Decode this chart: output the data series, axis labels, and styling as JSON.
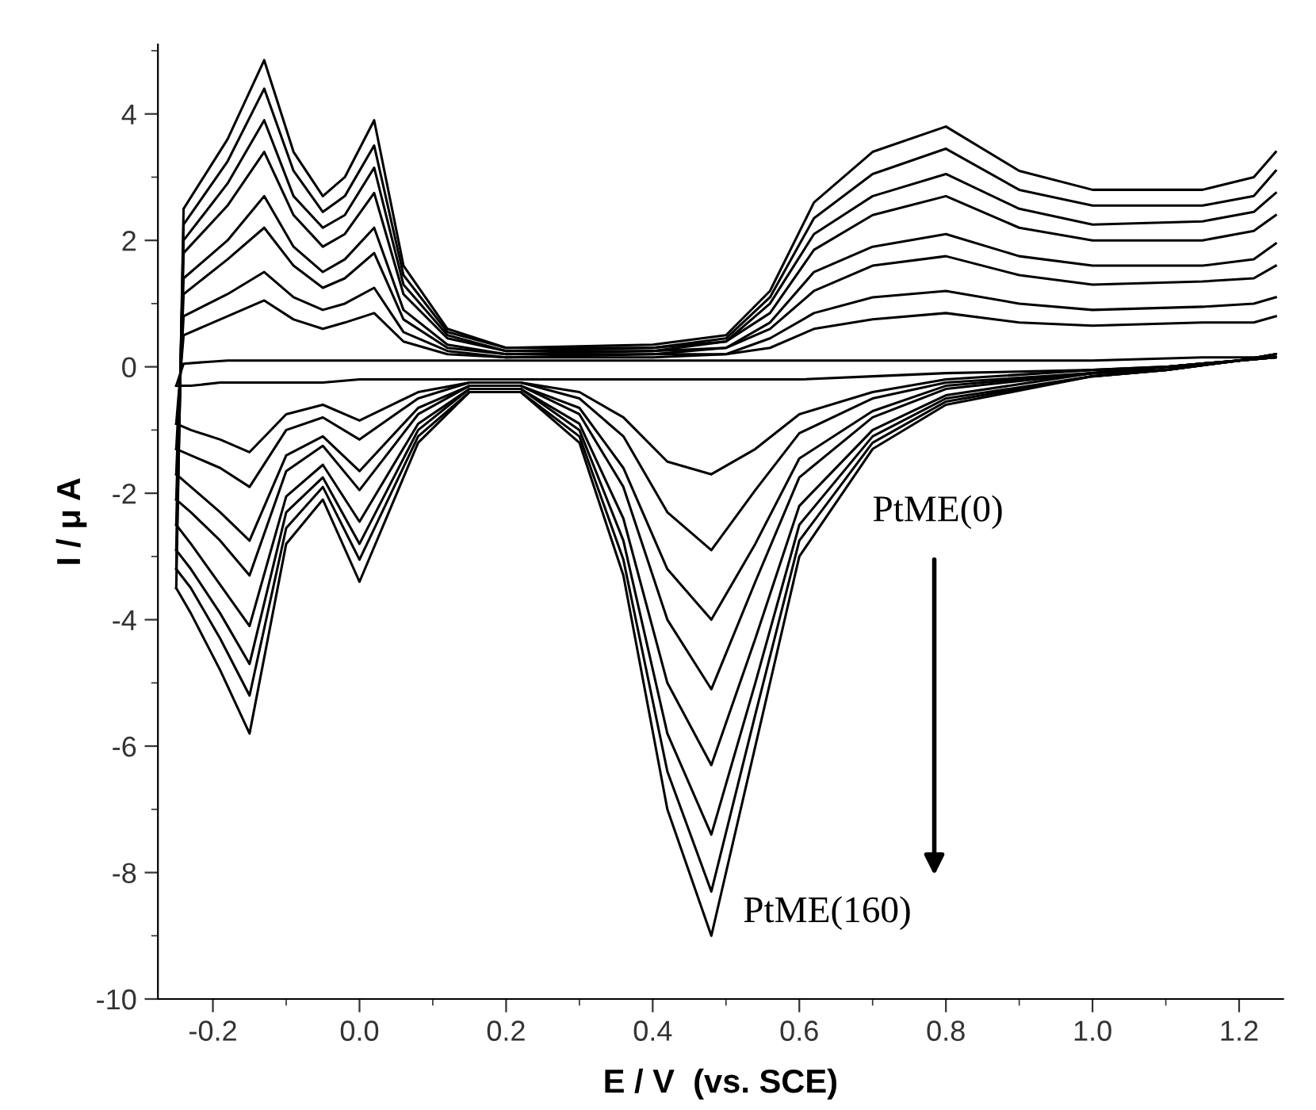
{
  "chart_data": {
    "type": "line",
    "xlabel": "E / V  (vs. SCE)",
    "ylabel": "I / μ A",
    "annotations": [
      "PtME(0)",
      "PtME(160)"
    ],
    "series": [
      {
        "color": "#000000",
        "x": [
          -0.25,
          -0.24,
          -0.18,
          -0.13,
          -0.09,
          -0.05,
          -0.02,
          0.02,
          0.06,
          0.12,
          0.2,
          0.4,
          0.5,
          0.56,
          0.62,
          0.7,
          0.8,
          0.9,
          1.0,
          1.15,
          1.22,
          1.25
        ],
        "values": [
          -0.3,
          0.05,
          0.1,
          0.1,
          0.1,
          0.1,
          0.1,
          0.1,
          0.1,
          0.1,
          0.1,
          0.1,
          0.1,
          0.1,
          0.1,
          0.1,
          0.1,
          0.1,
          0.1,
          0.15,
          0.15,
          0.15
        ]
      },
      {
        "color": "#000000",
        "x": [
          -0.25,
          -0.23,
          -0.19,
          -0.15,
          -0.1,
          -0.05,
          0.0,
          0.08,
          0.15,
          0.22,
          0.3,
          0.36,
          0.42,
          0.48,
          0.54,
          0.6,
          0.7,
          0.8,
          1.0,
          1.1,
          1.2,
          1.25
        ],
        "values": [
          -0.3,
          -0.3,
          -0.25,
          -0.25,
          -0.25,
          -0.25,
          -0.2,
          -0.2,
          -0.2,
          -0.2,
          -0.2,
          -0.2,
          -0.2,
          -0.2,
          -0.2,
          -0.2,
          -0.15,
          -0.1,
          -0.05,
          0.0,
          0.1,
          0.15
        ]
      },
      {
        "color": "#000000",
        "x": [
          -0.25,
          -0.24,
          -0.18,
          -0.13,
          -0.09,
          -0.05,
          -0.02,
          0.02,
          0.06,
          0.12,
          0.2,
          0.4,
          0.5,
          0.56,
          0.62,
          0.7,
          0.8,
          0.9,
          1.0,
          1.15,
          1.22,
          1.25
        ],
        "values": [
          -0.9,
          0.5,
          0.8,
          1.05,
          0.75,
          0.6,
          0.7,
          0.85,
          0.4,
          0.2,
          0.15,
          0.15,
          0.2,
          0.3,
          0.6,
          0.75,
          0.85,
          0.7,
          0.65,
          0.7,
          0.7,
          0.8
        ]
      },
      {
        "color": "#000000",
        "x": [
          -0.25,
          -0.23,
          -0.19,
          -0.15,
          -0.1,
          -0.05,
          0.0,
          0.08,
          0.15,
          0.22,
          0.3,
          0.36,
          0.42,
          0.48,
          0.54,
          0.6,
          0.7,
          0.8,
          1.0,
          1.1,
          1.2,
          1.25
        ],
        "values": [
          -0.9,
          -1.0,
          -1.15,
          -1.35,
          -0.75,
          -0.6,
          -0.85,
          -0.4,
          -0.25,
          -0.25,
          -0.4,
          -0.8,
          -1.5,
          -1.7,
          -1.3,
          -0.75,
          -0.4,
          -0.2,
          -0.05,
          0.0,
          0.1,
          0.15
        ]
      },
      {
        "color": "#000000",
        "x": [
          -0.25,
          -0.24,
          -0.18,
          -0.13,
          -0.09,
          -0.05,
          -0.02,
          0.02,
          0.06,
          0.12,
          0.2,
          0.4,
          0.5,
          0.56,
          0.62,
          0.7,
          0.8,
          0.9,
          1.0,
          1.15,
          1.22,
          1.25
        ],
        "values": [
          -1.3,
          0.8,
          1.15,
          1.5,
          1.1,
          0.9,
          1.0,
          1.25,
          0.55,
          0.25,
          0.15,
          0.2,
          0.2,
          0.45,
          0.85,
          1.1,
          1.2,
          1.0,
          0.9,
          0.95,
          1.0,
          1.1
        ]
      },
      {
        "color": "#000000",
        "x": [
          -0.25,
          -0.23,
          -0.19,
          -0.15,
          -0.1,
          -0.05,
          0.0,
          0.08,
          0.15,
          0.22,
          0.3,
          0.36,
          0.42,
          0.48,
          0.54,
          0.6,
          0.7,
          0.8,
          1.0,
          1.1,
          1.2,
          1.25
        ],
        "values": [
          -1.3,
          -1.4,
          -1.6,
          -1.9,
          -1.0,
          -0.8,
          -1.15,
          -0.5,
          -0.25,
          -0.25,
          -0.5,
          -1.1,
          -2.3,
          -2.9,
          -1.95,
          -1.05,
          -0.5,
          -0.25,
          -0.1,
          0.0,
          0.1,
          0.15
        ]
      },
      {
        "color": "#000000",
        "x": [
          -0.25,
          -0.24,
          -0.18,
          -0.13,
          -0.09,
          -0.05,
          -0.02,
          0.02,
          0.06,
          0.12,
          0.2,
          0.4,
          0.5,
          0.56,
          0.62,
          0.7,
          0.8,
          0.9,
          1.0,
          1.15,
          1.22,
          1.25
        ],
        "values": [
          -1.7,
          1.15,
          1.7,
          2.2,
          1.6,
          1.25,
          1.4,
          1.8,
          0.75,
          0.3,
          0.2,
          0.2,
          0.3,
          0.6,
          1.2,
          1.6,
          1.75,
          1.45,
          1.3,
          1.35,
          1.4,
          1.6
        ]
      },
      {
        "color": "#000000",
        "x": [
          -0.25,
          -0.23,
          -0.19,
          -0.15,
          -0.1,
          -0.05,
          0.0,
          0.08,
          0.15,
          0.22,
          0.3,
          0.36,
          0.42,
          0.48,
          0.54,
          0.6,
          0.7,
          0.8,
          1.0,
          1.1,
          1.2,
          1.25
        ],
        "values": [
          -1.7,
          -1.9,
          -2.3,
          -2.75,
          -1.4,
          -1.1,
          -1.65,
          -0.65,
          -0.3,
          -0.3,
          -0.65,
          -1.6,
          -3.2,
          -4.0,
          -2.8,
          -1.45,
          -0.7,
          -0.3,
          -0.1,
          0.0,
          0.1,
          0.15
        ]
      },
      {
        "color": "#000000",
        "x": [
          -0.25,
          -0.24,
          -0.18,
          -0.13,
          -0.09,
          -0.05,
          -0.02,
          0.02,
          0.06,
          0.12,
          0.2,
          0.4,
          0.5,
          0.56,
          0.62,
          0.7,
          0.8,
          0.9,
          1.0,
          1.15,
          1.22,
          1.25
        ],
        "values": [
          -2.1,
          1.4,
          2.0,
          2.7,
          1.9,
          1.5,
          1.7,
          2.2,
          0.9,
          0.35,
          0.2,
          0.25,
          0.3,
          0.7,
          1.5,
          1.9,
          2.1,
          1.75,
          1.6,
          1.6,
          1.7,
          1.95
        ]
      },
      {
        "color": "#000000",
        "x": [
          -0.25,
          -0.23,
          -0.19,
          -0.15,
          -0.1,
          -0.05,
          0.0,
          0.08,
          0.15,
          0.22,
          0.3,
          0.36,
          0.42,
          0.48,
          0.54,
          0.6,
          0.7,
          0.8,
          1.0,
          1.1,
          1.2,
          1.25
        ],
        "values": [
          -2.1,
          -2.3,
          -2.75,
          -3.3,
          -1.65,
          -1.25,
          -1.95,
          -0.75,
          -0.3,
          -0.3,
          -0.75,
          -1.9,
          -4.0,
          -5.1,
          -3.4,
          -1.75,
          -0.8,
          -0.35,
          -0.1,
          0.0,
          0.1,
          0.15
        ]
      },
      {
        "color": "#000000",
        "x": [
          -0.25,
          -0.24,
          -0.18,
          -0.13,
          -0.09,
          -0.05,
          -0.02,
          0.02,
          0.06,
          0.12,
          0.2,
          0.4,
          0.5,
          0.56,
          0.62,
          0.7,
          0.8,
          0.9,
          1.0,
          1.15,
          1.22,
          1.25
        ],
        "values": [
          -2.5,
          1.8,
          2.55,
          3.4,
          2.4,
          1.9,
          2.1,
          2.75,
          1.15,
          0.45,
          0.25,
          0.25,
          0.4,
          0.85,
          1.85,
          2.4,
          2.7,
          2.2,
          2.0,
          2.0,
          2.15,
          2.4
        ]
      },
      {
        "color": "#000000",
        "x": [
          -0.25,
          -0.23,
          -0.19,
          -0.15,
          -0.1,
          -0.05,
          0.0,
          0.08,
          0.15,
          0.22,
          0.3,
          0.36,
          0.42,
          0.48,
          0.54,
          0.6,
          0.7,
          0.8,
          1.0,
          1.1,
          1.2,
          1.25
        ],
        "values": [
          -2.5,
          -2.8,
          -3.45,
          -4.1,
          -2.05,
          -1.55,
          -2.45,
          -0.9,
          -0.35,
          -0.35,
          -0.9,
          -2.4,
          -5.0,
          -6.3,
          -4.3,
          -2.2,
          -1.0,
          -0.45,
          -0.1,
          -0.05,
          0.1,
          0.2
        ]
      },
      {
        "color": "#000000",
        "x": [
          -0.25,
          -0.24,
          -0.18,
          -0.13,
          -0.09,
          -0.05,
          -0.02,
          0.02,
          0.06,
          0.12,
          0.2,
          0.4,
          0.5,
          0.56,
          0.62,
          0.7,
          0.8,
          0.9,
          1.0,
          1.15,
          1.22,
          1.25
        ],
        "values": [
          -2.9,
          2.0,
          2.9,
          3.9,
          2.7,
          2.2,
          2.4,
          3.15,
          1.3,
          0.5,
          0.25,
          0.3,
          0.4,
          1.0,
          2.1,
          2.7,
          3.05,
          2.5,
          2.25,
          2.3,
          2.45,
          2.75
        ]
      },
      {
        "color": "#000000",
        "x": [
          -0.25,
          -0.23,
          -0.19,
          -0.15,
          -0.1,
          -0.05,
          0.0,
          0.08,
          0.15,
          0.22,
          0.3,
          0.36,
          0.42,
          0.48,
          0.54,
          0.6,
          0.7,
          0.8,
          1.0,
          1.1,
          1.2,
          1.25
        ],
        "values": [
          -2.9,
          -3.2,
          -3.9,
          -4.7,
          -2.3,
          -1.75,
          -2.8,
          -1.0,
          -0.35,
          -0.35,
          -1.0,
          -2.75,
          -5.8,
          -7.4,
          -5.0,
          -2.5,
          -1.1,
          -0.5,
          -0.15,
          -0.05,
          0.1,
          0.2
        ]
      },
      {
        "color": "#000000",
        "x": [
          -0.25,
          -0.24,
          -0.18,
          -0.13,
          -0.09,
          -0.05,
          -0.02,
          0.02,
          0.06,
          0.12,
          0.2,
          0.4,
          0.5,
          0.56,
          0.62,
          0.7,
          0.8,
          0.9,
          1.0,
          1.15,
          1.22,
          1.25
        ],
        "values": [
          -3.2,
          2.25,
          3.25,
          4.4,
          3.1,
          2.45,
          2.7,
          3.5,
          1.45,
          0.55,
          0.3,
          0.3,
          0.45,
          1.1,
          2.35,
          3.05,
          3.45,
          2.8,
          2.55,
          2.55,
          2.7,
          3.1
        ]
      },
      {
        "color": "#000000",
        "x": [
          -0.25,
          -0.23,
          -0.19,
          -0.15,
          -0.1,
          -0.05,
          0.0,
          0.08,
          0.15,
          0.22,
          0.3,
          0.36,
          0.42,
          0.48,
          0.54,
          0.6,
          0.7,
          0.8,
          1.0,
          1.1,
          1.2,
          1.25
        ],
        "values": [
          -3.2,
          -3.5,
          -4.3,
          -5.2,
          -2.55,
          -1.9,
          -3.05,
          -1.1,
          -0.4,
          -0.4,
          -1.1,
          -3.05,
          -6.4,
          -8.3,
          -5.5,
          -2.75,
          -1.2,
          -0.55,
          -0.15,
          -0.05,
          0.1,
          0.2
        ]
      },
      {
        "color": "#000000",
        "x": [
          -0.25,
          -0.24,
          -0.18,
          -0.13,
          -0.09,
          -0.05,
          -0.02,
          0.02,
          0.06,
          0.12,
          0.2,
          0.4,
          0.5,
          0.56,
          0.62,
          0.7,
          0.8,
          0.9,
          1.0,
          1.15,
          1.22,
          1.25
        ],
        "values": [
          -3.5,
          2.5,
          3.6,
          4.85,
          3.4,
          2.7,
          3.0,
          3.9,
          1.6,
          0.6,
          0.3,
          0.35,
          0.5,
          1.2,
          2.6,
          3.4,
          3.8,
          3.1,
          2.8,
          2.8,
          3.0,
          3.4
        ]
      },
      {
        "color": "#000000",
        "x": [
          -0.25,
          -0.23,
          -0.19,
          -0.15,
          -0.1,
          -0.05,
          0.0,
          0.08,
          0.15,
          0.22,
          0.3,
          0.36,
          0.42,
          0.48,
          0.54,
          0.6,
          0.7,
          0.8,
          1.0,
          1.1,
          1.2,
          1.25
        ],
        "values": [
          -3.5,
          -3.9,
          -4.8,
          -5.8,
          -2.8,
          -2.1,
          -3.4,
          -1.2,
          -0.4,
          -0.4,
          -1.2,
          -3.3,
          -7.0,
          -9.0,
          -6.0,
          -3.0,
          -1.3,
          -0.6,
          -0.15,
          -0.05,
          0.1,
          0.2
        ]
      }
    ],
    "xlim": [
      -0.275,
      1.26
    ],
    "xticks": [
      -0.2,
      {
        "value": 0,
        "label": "0.0"
      },
      0.2,
      0.4,
      0.6,
      0.8,
      {
        "value": 1,
        "label": "1.0"
      },
      1.2
    ],
    "ylim": [
      -10,
      5.1
    ],
    "yticks": [
      -10,
      -8,
      -6,
      -4,
      -2,
      0,
      2,
      4
    ],
    "grid": false,
    "legend": false,
    "marker": "none",
    "line_style": "solid"
  }
}
